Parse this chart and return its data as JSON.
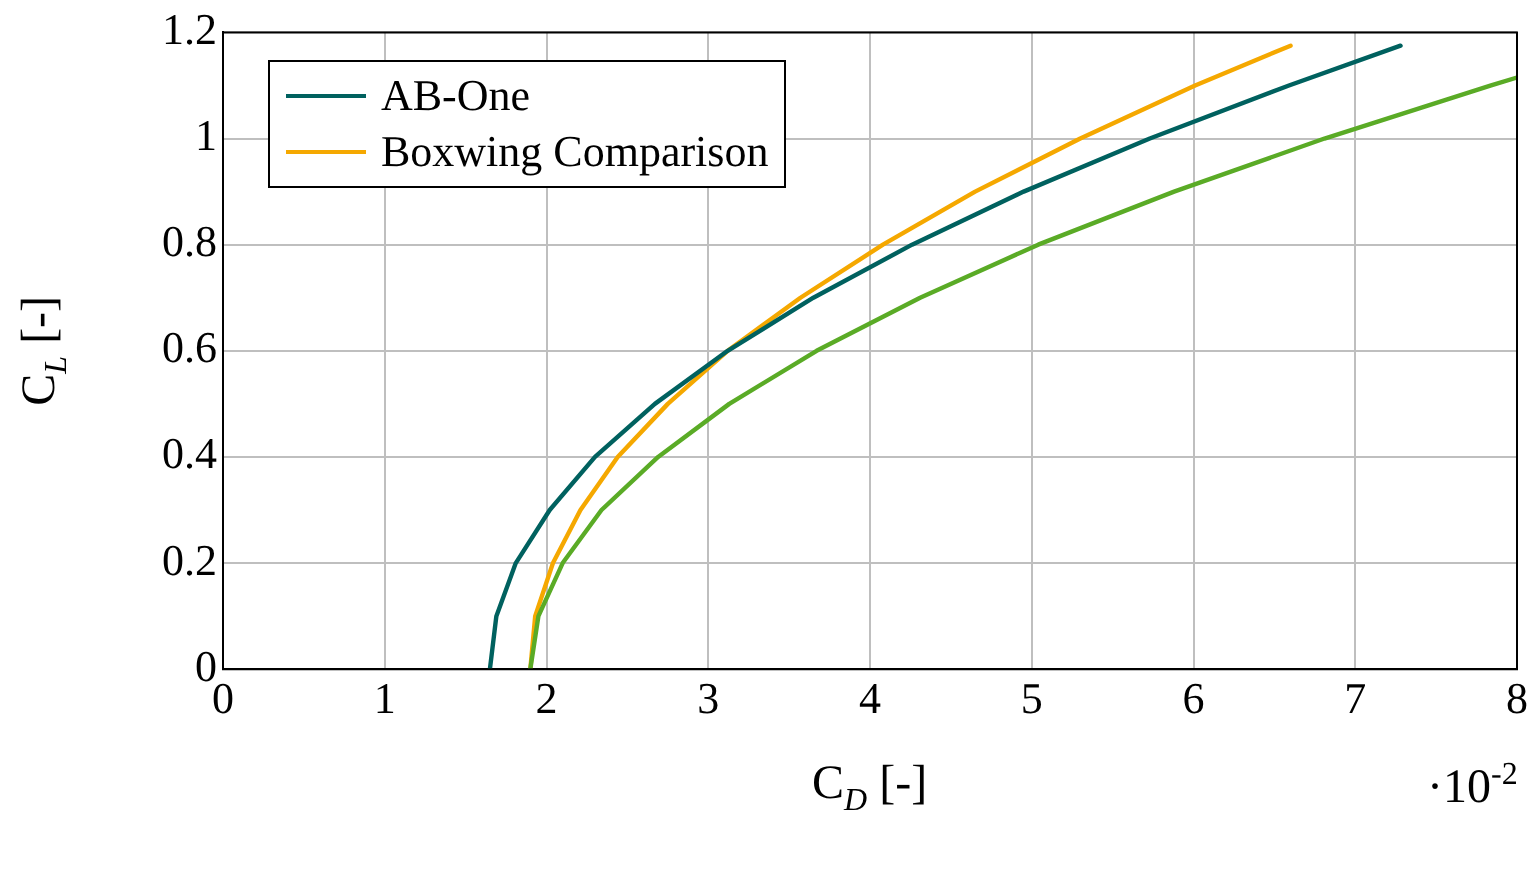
{
  "chart_data": {
    "type": "line",
    "xlabel": "C$_{D}$ [-]",
    "ylabel": "C$_{L}$ [-]",
    "annotations": [
      "·10$^{-2}$"
    ],
    "xlim": [
      0,
      8
    ],
    "xticks": [
      0,
      1,
      2,
      3,
      4,
      5,
      6,
      7,
      8
    ],
    "ylim": [
      0,
      1.2
    ],
    "yticks": [
      0,
      0.2,
      0.4,
      0.6,
      0.8,
      1,
      1.2
    ],
    "grid": true,
    "legend": "top left",
    "marker": "none",
    "line_style": "solid",
    "series": [
      {
        "name": "AB-One",
        "color": "#00615f",
        "x": [
          1.65,
          1.69,
          1.81,
          2.02,
          2.3,
          2.67,
          3.12,
          3.65,
          4.26,
          4.95,
          5.73,
          6.59,
          7.28
        ],
        "values": [
          0,
          0.1,
          0.2,
          0.3,
          0.4,
          0.5,
          0.6,
          0.7,
          0.8,
          0.9,
          1,
          1.1,
          1.175
        ]
      },
      {
        "color": "#5aab26",
        "x": [
          1.9,
          1.95,
          2.1,
          2.34,
          2.69,
          3.13,
          3.67,
          4.31,
          5.04,
          5.88,
          6.81,
          7.84,
          8
        ],
        "values": [
          0,
          0.1,
          0.2,
          0.3,
          0.4,
          0.5,
          0.6,
          0.7,
          0.8,
          0.9,
          1,
          1.1,
          1.115
        ]
      },
      {
        "name": "Boxwing Comparison",
        "color": "#f5a800",
        "x": [
          1.9,
          1.93,
          2.04,
          2.21,
          2.44,
          2.75,
          3.12,
          3.57,
          4.08,
          4.65,
          5.3,
          6.01,
          6.6
        ],
        "values": [
          0,
          0.1,
          0.2,
          0.3,
          0.4,
          0.5,
          0.6,
          0.7,
          0.8,
          0.9,
          1,
          1.1,
          1.175
        ]
      }
    ]
  }
}
